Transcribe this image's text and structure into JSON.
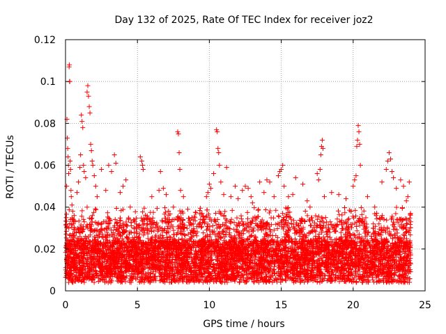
{
  "chart_data": {
    "type": "scatter",
    "title": "Day 132 of 2025, Rate Of TEC Index for receiver joz2",
    "xlabel": "GPS time / hours",
    "ylabel": "ROTI / TECUs",
    "xlim": [
      0,
      25
    ],
    "ylim": [
      0,
      0.12
    ],
    "xticks": [
      0,
      5,
      10,
      15,
      20,
      25
    ],
    "xtick_labels": [
      "0",
      "5",
      "10",
      "15",
      "20",
      "25"
    ],
    "yticks": [
      0,
      0.02,
      0.04,
      0.06,
      0.08,
      0.1,
      0.12
    ],
    "ytick_labels": [
      "0",
      "0.02",
      "0.04",
      "0.06",
      "0.08",
      "0.1",
      "0.12"
    ],
    "grid": true,
    "marker": "+",
    "color": "#ff0000",
    "data_x_range_hours": [
      0,
      24
    ],
    "series": [
      {
        "name": "joz2",
        "points": [
          [
            0.05,
            0.035
          ],
          [
            0.08,
            0.05
          ],
          [
            0.1,
            0.082
          ],
          [
            0.12,
            0.073
          ],
          [
            0.15,
            0.068
          ],
          [
            0.18,
            0.064
          ],
          [
            0.2,
            0.06
          ],
          [
            0.22,
            0.056
          ],
          [
            0.25,
            0.107
          ],
          [
            0.27,
            0.108
          ],
          [
            0.28,
            0.1
          ],
          [
            0.3,
            0.1
          ],
          [
            0.32,
            0.062
          ],
          [
            0.35,
            0.058
          ],
          [
            0.38,
            0.048
          ],
          [
            0.4,
            0.045
          ],
          [
            0.45,
            0.041
          ],
          [
            0.5,
            0.038
          ],
          [
            0.6,
            0.036
          ],
          [
            0.8,
            0.047
          ],
          [
            0.9,
            0.052
          ],
          [
            1.0,
            0.059
          ],
          [
            1.05,
            0.065
          ],
          [
            1.1,
            0.084
          ],
          [
            1.15,
            0.081
          ],
          [
            1.2,
            0.078
          ],
          [
            1.25,
            0.06
          ],
          [
            1.3,
            0.057
          ],
          [
            1.4,
            0.054
          ],
          [
            1.5,
            0.095
          ],
          [
            1.55,
            0.098
          ],
          [
            1.6,
            0.093
          ],
          [
            1.65,
            0.088
          ],
          [
            1.7,
            0.085
          ],
          [
            1.75,
            0.07
          ],
          [
            1.8,
            0.067
          ],
          [
            1.85,
            0.062
          ],
          [
            1.9,
            0.06
          ],
          [
            2.0,
            0.055
          ],
          [
            2.1,
            0.05
          ],
          [
            2.2,
            0.045
          ],
          [
            2.5,
            0.058
          ],
          [
            2.8,
            0.048
          ],
          [
            3.0,
            0.06
          ],
          [
            3.2,
            0.057
          ],
          [
            3.4,
            0.065
          ],
          [
            3.5,
            0.061
          ],
          [
            3.8,
            0.047
          ],
          [
            4.0,
            0.05
          ],
          [
            4.2,
            0.053
          ],
          [
            4.5,
            0.04
          ],
          [
            5.2,
            0.064
          ],
          [
            5.3,
            0.062
          ],
          [
            5.35,
            0.06
          ],
          [
            5.4,
            0.058
          ],
          [
            6.0,
            0.045
          ],
          [
            6.5,
            0.048
          ],
          [
            6.6,
            0.057
          ],
          [
            6.8,
            0.049
          ],
          [
            7.0,
            0.046
          ],
          [
            7.5,
            0.04
          ],
          [
            7.8,
            0.076
          ],
          [
            7.85,
            0.075
          ],
          [
            7.9,
            0.066
          ],
          [
            7.95,
            0.058
          ],
          [
            8.0,
            0.048
          ],
          [
            8.2,
            0.045
          ],
          [
            8.5,
            0.039
          ],
          [
            9.0,
            0.035
          ],
          [
            9.5,
            0.037
          ],
          [
            9.8,
            0.045
          ],
          [
            9.9,
            0.047
          ],
          [
            10.0,
            0.051
          ],
          [
            10.1,
            0.049
          ],
          [
            10.3,
            0.056
          ],
          [
            10.5,
            0.077
          ],
          [
            10.55,
            0.076
          ],
          [
            10.6,
            0.068
          ],
          [
            10.65,
            0.066
          ],
          [
            10.7,
            0.06
          ],
          [
            10.8,
            0.052
          ],
          [
            11.0,
            0.046
          ],
          [
            11.2,
            0.059
          ],
          [
            11.5,
            0.045
          ],
          [
            11.8,
            0.05
          ],
          [
            12.0,
            0.044
          ],
          [
            12.3,
            0.048
          ],
          [
            12.5,
            0.05
          ],
          [
            12.7,
            0.049
          ],
          [
            12.9,
            0.045
          ],
          [
            13.0,
            0.042
          ],
          [
            13.5,
            0.052
          ],
          [
            13.8,
            0.047
          ],
          [
            14.0,
            0.053
          ],
          [
            14.2,
            0.052
          ],
          [
            14.5,
            0.045
          ],
          [
            14.8,
            0.055
          ],
          [
            14.9,
            0.057
          ],
          [
            15.0,
            0.058
          ],
          [
            15.1,
            0.06
          ],
          [
            15.2,
            0.05
          ],
          [
            15.5,
            0.045
          ],
          [
            15.8,
            0.046
          ],
          [
            16.0,
            0.054
          ],
          [
            16.5,
            0.051
          ],
          [
            16.8,
            0.043
          ],
          [
            17.0,
            0.04
          ],
          [
            17.5,
            0.056
          ],
          [
            17.6,
            0.053
          ],
          [
            17.7,
            0.058
          ],
          [
            17.75,
            0.065
          ],
          [
            17.8,
            0.069
          ],
          [
            17.85,
            0.072
          ],
          [
            17.9,
            0.068
          ],
          [
            18.0,
            0.045
          ],
          [
            18.5,
            0.047
          ],
          [
            19.0,
            0.046
          ],
          [
            19.5,
            0.044
          ],
          [
            20.0,
            0.05
          ],
          [
            20.1,
            0.053
          ],
          [
            20.2,
            0.055
          ],
          [
            20.25,
            0.069
          ],
          [
            20.3,
            0.072
          ],
          [
            20.35,
            0.079
          ],
          [
            20.4,
            0.076
          ],
          [
            20.45,
            0.07
          ],
          [
            20.5,
            0.06
          ],
          [
            21.0,
            0.045
          ],
          [
            21.5,
            0.04
          ],
          [
            22.0,
            0.052
          ],
          [
            22.3,
            0.058
          ],
          [
            22.4,
            0.062
          ],
          [
            22.5,
            0.066
          ],
          [
            22.6,
            0.063
          ],
          [
            22.7,
            0.057
          ],
          [
            22.8,
            0.054
          ],
          [
            23.0,
            0.049
          ],
          [
            23.3,
            0.053
          ],
          [
            23.5,
            0.05
          ],
          [
            23.7,
            0.043
          ],
          [
            23.8,
            0.045
          ],
          [
            23.9,
            0.052
          ],
          [
            24.0,
            0.033
          ]
        ]
      }
    ]
  }
}
